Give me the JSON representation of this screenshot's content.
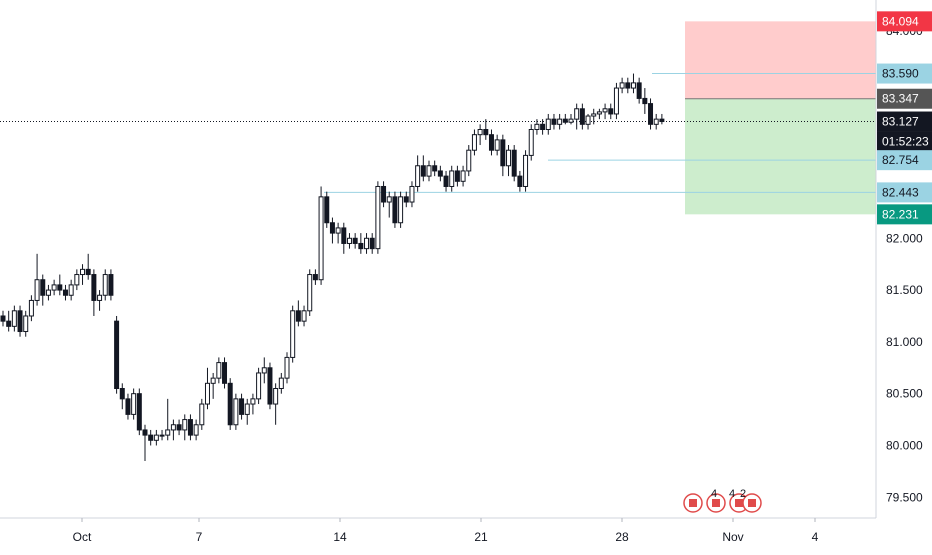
{
  "chart_data": {
    "type": "candlestick",
    "title": "",
    "x_tick_labels": [
      "Oct",
      "7",
      "14",
      "21",
      "28",
      "Nov",
      "4"
    ],
    "y_tick_labels": [
      "79.500",
      "80.000",
      "80.500",
      "81.000",
      "81.500",
      "82.000",
      "84.000"
    ],
    "ylim": [
      79.3,
      84.3
    ],
    "grid": false,
    "candles": [
      [
        81.25,
        81.3,
        81.15,
        81.2
      ],
      [
        81.2,
        81.3,
        81.1,
        81.15
      ],
      [
        81.15,
        81.35,
        81.1,
        81.3
      ],
      [
        81.3,
        81.35,
        81.05,
        81.1
      ],
      [
        81.1,
        81.3,
        81.05,
        81.25
      ],
      [
        81.25,
        81.45,
        81.2,
        81.4
      ],
      [
        81.4,
        81.85,
        81.35,
        81.6
      ],
      [
        81.6,
        81.65,
        81.35,
        81.45
      ],
      [
        81.45,
        81.55,
        81.4,
        81.5
      ],
      [
        81.5,
        81.6,
        81.45,
        81.55
      ],
      [
        81.55,
        81.65,
        81.45,
        81.5
      ],
      [
        81.5,
        81.55,
        81.4,
        81.45
      ],
      [
        81.45,
        81.6,
        81.4,
        81.55
      ],
      [
        81.55,
        81.7,
        81.5,
        81.65
      ],
      [
        81.65,
        81.75,
        81.55,
        81.7
      ],
      [
        81.7,
        81.85,
        81.6,
        81.65
      ],
      [
        81.65,
        81.7,
        81.25,
        81.4
      ],
      [
        81.4,
        81.5,
        81.3,
        81.45
      ],
      [
        81.45,
        81.7,
        81.4,
        81.65
      ],
      [
        81.65,
        81.7,
        81.4,
        81.45
      ],
      [
        81.2,
        81.25,
        80.5,
        80.55
      ],
      [
        80.55,
        80.6,
        80.35,
        80.45
      ],
      [
        80.45,
        80.5,
        80.25,
        80.3
      ],
      [
        80.3,
        80.55,
        80.25,
        80.5
      ],
      [
        80.5,
        80.55,
        80.1,
        80.15
      ],
      [
        80.15,
        80.2,
        79.85,
        80.1
      ],
      [
        80.1,
        80.15,
        80.0,
        80.05
      ],
      [
        80.05,
        80.15,
        80.0,
        80.1
      ],
      [
        80.1,
        80.15,
        80.05,
        80.1
      ],
      [
        80.1,
        80.45,
        80.05,
        80.15
      ],
      [
        80.15,
        80.25,
        80.05,
        80.2
      ],
      [
        80.2,
        80.25,
        80.1,
        80.15
      ],
      [
        80.15,
        80.3,
        80.05,
        80.25
      ],
      [
        80.25,
        80.3,
        80.05,
        80.1
      ],
      [
        80.1,
        80.25,
        80.05,
        80.2
      ],
      [
        80.2,
        80.45,
        80.15,
        80.4
      ],
      [
        80.4,
        80.75,
        80.35,
        80.6
      ],
      [
        80.6,
        80.7,
        80.45,
        80.65
      ],
      [
        80.65,
        80.85,
        80.6,
        80.8
      ],
      [
        80.8,
        80.85,
        80.55,
        80.6
      ],
      [
        80.6,
        80.65,
        80.15,
        80.2
      ],
      [
        80.2,
        80.5,
        80.15,
        80.45
      ],
      [
        80.45,
        80.5,
        80.25,
        80.3
      ],
      [
        80.3,
        80.45,
        80.2,
        80.4
      ],
      [
        80.4,
        80.5,
        80.3,
        80.45
      ],
      [
        80.45,
        80.75,
        80.4,
        80.7
      ],
      [
        80.7,
        80.85,
        80.6,
        80.75
      ],
      [
        80.75,
        80.8,
        80.35,
        80.4
      ],
      [
        80.4,
        80.6,
        80.2,
        80.55
      ],
      [
        80.55,
        80.7,
        80.5,
        80.65
      ],
      [
        80.65,
        80.9,
        80.6,
        80.85
      ],
      [
        80.85,
        81.35,
        80.8,
        81.3
      ],
      [
        81.3,
        81.4,
        81.15,
        81.2
      ],
      [
        81.2,
        81.35,
        81.15,
        81.3
      ],
      [
        81.3,
        81.7,
        81.25,
        81.65
      ],
      [
        81.65,
        81.7,
        81.55,
        81.6
      ],
      [
        81.6,
        82.5,
        81.55,
        82.4
      ],
      [
        82.4,
        82.45,
        82.1,
        82.15
      ],
      [
        82.15,
        82.2,
        81.95,
        82.05
      ],
      [
        82.05,
        82.15,
        81.95,
        82.1
      ],
      [
        82.1,
        82.15,
        81.85,
        81.95
      ],
      [
        81.95,
        82.05,
        81.9,
        82.0
      ],
      [
        82.0,
        82.05,
        81.9,
        81.95
      ],
      [
        81.95,
        82.05,
        81.85,
        81.9
      ],
      [
        81.9,
        82.05,
        81.85,
        82.0
      ],
      [
        82.0,
        82.05,
        81.85,
        81.9
      ],
      [
        81.9,
        82.55,
        81.85,
        82.5
      ],
      [
        82.5,
        82.55,
        82.3,
        82.35
      ],
      [
        82.35,
        82.45,
        82.2,
        82.4
      ],
      [
        82.4,
        82.45,
        82.1,
        82.15
      ],
      [
        82.15,
        82.45,
        82.1,
        82.4
      ],
      [
        82.4,
        82.45,
        82.3,
        82.35
      ],
      [
        82.35,
        82.55,
        82.3,
        82.5
      ],
      [
        82.5,
        82.8,
        82.45,
        82.7
      ],
      [
        82.7,
        82.8,
        82.55,
        82.6
      ],
      [
        82.6,
        82.75,
        82.55,
        82.7
      ],
      [
        82.7,
        82.75,
        82.6,
        82.65
      ],
      [
        82.65,
        82.7,
        82.55,
        82.6
      ],
      [
        82.6,
        82.65,
        82.45,
        82.5
      ],
      [
        82.5,
        82.7,
        82.45,
        82.65
      ],
      [
        82.65,
        82.7,
        82.5,
        82.55
      ],
      [
        82.55,
        82.7,
        82.5,
        82.65
      ],
      [
        82.65,
        82.9,
        82.6,
        82.85
      ],
      [
        82.85,
        83.05,
        82.8,
        83.0
      ],
      [
        83.0,
        83.1,
        82.9,
        83.05
      ],
      [
        83.05,
        83.15,
        82.95,
        83.0
      ],
      [
        83.0,
        83.05,
        82.8,
        82.85
      ],
      [
        82.85,
        83.0,
        82.8,
        82.95
      ],
      [
        82.95,
        83.0,
        82.6,
        82.7
      ],
      [
        82.7,
        82.9,
        82.6,
        82.85
      ],
      [
        82.85,
        82.9,
        82.55,
        82.6
      ],
      [
        82.6,
        82.65,
        82.45,
        82.5
      ],
      [
        82.5,
        82.85,
        82.45,
        82.8
      ],
      [
        82.8,
        83.1,
        82.75,
        83.05
      ],
      [
        83.05,
        83.15,
        83.0,
        83.1
      ],
      [
        83.1,
        83.15,
        83.0,
        83.05
      ],
      [
        83.05,
        83.2,
        83.0,
        83.15
      ],
      [
        83.15,
        83.2,
        83.05,
        83.1
      ],
      [
        83.1,
        83.2,
        83.05,
        83.15
      ],
      [
        83.15,
        83.2,
        83.1,
        83.12
      ],
      [
        83.12,
        83.2,
        83.1,
        83.15
      ],
      [
        83.15,
        83.3,
        83.05,
        83.25
      ],
      [
        83.25,
        83.3,
        83.05,
        83.1
      ],
      [
        83.1,
        83.2,
        83.05,
        83.18
      ],
      [
        83.18,
        83.25,
        83.1,
        83.2
      ],
      [
        83.2,
        83.25,
        83.15,
        83.22
      ],
      [
        83.22,
        83.3,
        83.15,
        83.25
      ],
      [
        83.25,
        83.3,
        83.15,
        83.2
      ],
      [
        83.2,
        83.5,
        83.15,
        83.45
      ],
      [
        83.45,
        83.55,
        83.4,
        83.5
      ],
      [
        83.5,
        83.55,
        83.4,
        83.45
      ],
      [
        83.45,
        83.59,
        83.4,
        83.5
      ],
      [
        83.5,
        83.55,
        83.3,
        83.35
      ],
      [
        83.35,
        83.45,
        83.2,
        83.3
      ],
      [
        83.3,
        83.35,
        83.05,
        83.1
      ],
      [
        83.1,
        83.2,
        83.05,
        83.15
      ],
      [
        83.15,
        83.2,
        83.1,
        83.127
      ]
    ],
    "levels": [
      {
        "label": "84.094",
        "value": 84.094,
        "kind": "stop",
        "color": "#f23645"
      },
      {
        "label": "83.590",
        "value": 83.59,
        "kind": "line",
        "color": "#9bd3e3"
      },
      {
        "label": "83.347",
        "value": 83.347,
        "kind": "entry",
        "color": "#555555"
      },
      {
        "label": "83.127",
        "value": 83.127,
        "kind": "current",
        "color": "#131722"
      },
      {
        "label": "01:52:23",
        "value": 83.0,
        "kind": "countdown",
        "color": "#131722"
      },
      {
        "label": "82.754",
        "value": 82.754,
        "kind": "line",
        "color": "#9bd3e3"
      },
      {
        "label": "82.443",
        "value": 82.443,
        "kind": "line",
        "color": "#9bd3e3"
      },
      {
        "label": "82.231",
        "value": 82.231,
        "kind": "target",
        "color": "#089981"
      }
    ],
    "position": {
      "entry": 83.347,
      "stop": 84.094,
      "target": 82.231,
      "risk_color": "#ffc7c7",
      "reward_color": "#c8ebc8"
    },
    "event_badges": [
      "4",
      "4",
      "2"
    ],
    "colors": {
      "up_candle": "#ffffff",
      "down_candle": "#131722",
      "wick": "#131722",
      "axis_text": "#131722"
    }
  }
}
